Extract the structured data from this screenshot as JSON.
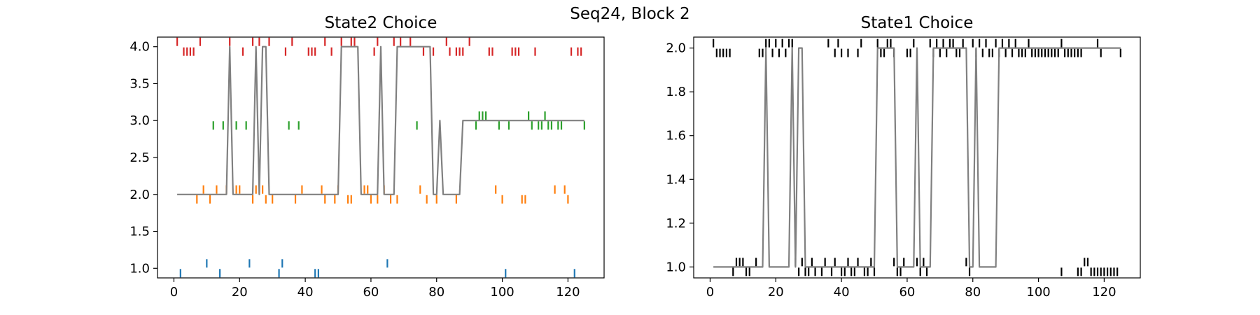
{
  "suptitle": "Seq24, Block 2",
  "chart_data": [
    {
      "type": "scatter",
      "title": "State2 Choice",
      "xlabel": "",
      "ylabel": "",
      "xlim": [
        -5,
        131
      ],
      "ylim": [
        0.87,
        4.13
      ],
      "xticks": [
        0,
        20,
        40,
        60,
        80,
        100,
        120
      ],
      "yticks": [
        1.0,
        1.5,
        2.0,
        2.5,
        3.0,
        3.5,
        4.0
      ],
      "ytick_labels": [
        "1.0",
        "1.5",
        "2.0",
        "2.5",
        "3.0",
        "3.5",
        "4.0"
      ],
      "grid": false,
      "legend": "none",
      "tick_series": [
        {
          "color": "#1f77b4",
          "level": 1,
          "x": [
            2,
            10,
            14,
            23,
            32,
            33,
            43,
            44,
            65,
            101,
            122
          ],
          "offset": [
            -1,
            1,
            -1,
            1,
            -1,
            1,
            -1,
            -1,
            1,
            -1,
            -1
          ]
        },
        {
          "color": "#ff7f0e",
          "level": 2,
          "x": [
            7,
            9,
            11,
            13,
            16,
            19,
            20,
            24,
            25,
            26,
            27,
            28,
            30,
            37,
            39,
            45,
            46,
            49,
            50,
            53,
            54,
            58,
            59,
            60,
            62,
            64,
            66,
            68,
            75,
            77,
            80,
            86,
            98,
            100,
            106,
            107,
            116,
            119,
            120
          ],
          "offset": [
            -1,
            1,
            -1,
            1,
            1,
            1,
            1,
            -1,
            1,
            1,
            1,
            -1,
            -1,
            -1,
            1,
            1,
            -1,
            -1,
            1,
            -1,
            -1,
            1,
            1,
            -1,
            -1,
            1,
            -1,
            -1,
            1,
            -1,
            -1,
            -1,
            1,
            -1,
            -1,
            -1,
            1,
            1,
            -1
          ]
        },
        {
          "color": "#2ca02c",
          "level": 3,
          "x": [
            12,
            15,
            19,
            22,
            35,
            38,
            74,
            92,
            93,
            94,
            95,
            99,
            102,
            108,
            109,
            111,
            112,
            113,
            114,
            115,
            117,
            118,
            125
          ],
          "offset": [
            -1,
            -1,
            -1,
            -1,
            -1,
            -1,
            -1,
            -1,
            1,
            1,
            1,
            -1,
            -1,
            1,
            -1,
            -1,
            -1,
            1,
            -1,
            -1,
            -1,
            -1,
            -1
          ]
        },
        {
          "color": "#d62728",
          "level": 4,
          "x": [
            1,
            3,
            4,
            5,
            6,
            8,
            17,
            21,
            24,
            26,
            29,
            34,
            36,
            41,
            42,
            43,
            46,
            48,
            51,
            54,
            55,
            61,
            62,
            67,
            69,
            72,
            76,
            79,
            83,
            84,
            86,
            87,
            88,
            90,
            96,
            97,
            103,
            104,
            105,
            110,
            121,
            123,
            124
          ],
          "offset": [
            1,
            -1,
            -1,
            -1,
            -1,
            1,
            1,
            -1,
            1,
            1,
            1,
            -1,
            1,
            -1,
            -1,
            -1,
            1,
            -1,
            1,
            1,
            1,
            -1,
            1,
            1,
            1,
            1,
            -1,
            -1,
            1,
            -1,
            -1,
            -1,
            -1,
            1,
            -1,
            -1,
            -1,
            -1,
            -1,
            -1,
            -1,
            -1,
            -1
          ]
        }
      ],
      "line": {
        "color": "#808080",
        "x": [
          1,
          16,
          17,
          18,
          24,
          25,
          26,
          27,
          28,
          29,
          50,
          51,
          55,
          56,
          57,
          62,
          63,
          64,
          67,
          68,
          77,
          78,
          79,
          80,
          81,
          82,
          87,
          88,
          125
        ],
        "y": [
          2,
          2,
          4,
          2,
          2,
          4,
          2,
          4,
          4,
          2,
          2,
          4,
          4,
          4,
          2,
          2,
          4,
          2,
          2,
          4,
          4,
          4,
          2,
          2,
          3,
          2,
          2,
          3,
          3
        ]
      }
    },
    {
      "type": "scatter",
      "title": "State1 Choice",
      "xlabel": "",
      "ylabel": "",
      "xlim": [
        -5,
        131
      ],
      "ylim": [
        0.95,
        2.05
      ],
      "xticks": [
        0,
        20,
        40,
        60,
        80,
        100,
        120
      ],
      "yticks": [
        1.0,
        1.2,
        1.4,
        1.6,
        1.8,
        2.0
      ],
      "ytick_labels": [
        "1.0",
        "1.2",
        "1.4",
        "1.6",
        "1.8",
        "2.0"
      ],
      "grid": false,
      "legend": "none",
      "tick_series": [
        {
          "color": "#000000",
          "level": 1,
          "x": [
            7,
            8,
            9,
            10,
            11,
            12,
            14,
            26,
            27,
            28,
            29,
            30,
            31,
            32,
            34,
            35,
            37,
            38,
            40,
            41,
            42,
            43,
            44,
            45,
            47,
            48,
            49,
            50,
            56,
            57,
            58,
            59,
            63,
            64,
            65,
            66,
            78,
            79,
            107,
            112,
            113,
            114,
            115,
            116,
            117,
            118,
            119,
            120,
            121,
            122,
            123,
            124
          ],
          "offset": [
            -1,
            1,
            1,
            1,
            -1,
            -1,
            1,
            1,
            -1,
            1,
            -1,
            -1,
            1,
            -1,
            -1,
            1,
            -1,
            1,
            -1,
            -1,
            1,
            -1,
            -1,
            1,
            -1,
            -1,
            1,
            -1,
            1,
            -1,
            -1,
            1,
            1,
            -1,
            1,
            -1,
            1,
            -1,
            -1,
            -1,
            -1,
            1,
            1,
            -1,
            -1,
            -1,
            -1,
            -1,
            -1,
            -1,
            -1,
            -1
          ]
        },
        {
          "color": "#000000",
          "level": 2,
          "x": [
            1,
            2,
            3,
            4,
            5,
            6,
            15,
            16,
            17,
            18,
            19,
            20,
            21,
            22,
            23,
            24,
            25,
            36,
            38,
            39,
            40,
            42,
            45,
            46,
            51,
            52,
            53,
            54,
            55,
            56,
            60,
            61,
            62,
            67,
            68,
            69,
            70,
            71,
            72,
            73,
            74,
            75,
            76,
            77,
            80,
            81,
            82,
            83,
            84,
            85,
            86,
            87,
            88,
            89,
            90,
            91,
            92,
            93,
            94,
            95,
            96,
            97,
            98,
            99,
            100,
            101,
            102,
            103,
            104,
            105,
            106,
            107,
            108,
            109,
            110,
            111,
            112,
            113,
            118,
            119,
            125
          ],
          "offset": [
            1,
            -1,
            -1,
            -1,
            -1,
            -1,
            -1,
            -1,
            1,
            1,
            -1,
            1,
            -1,
            1,
            -1,
            1,
            1,
            1,
            -1,
            1,
            -1,
            -1,
            -1,
            1,
            1,
            -1,
            -1,
            1,
            1,
            -1,
            -1,
            -1,
            1,
            1,
            -1,
            1,
            -1,
            1,
            -1,
            1,
            1,
            -1,
            -1,
            1,
            1,
            -1,
            1,
            -1,
            1,
            -1,
            -1,
            1,
            -1,
            1,
            -1,
            1,
            -1,
            1,
            -1,
            -1,
            -1,
            1,
            -1,
            -1,
            -1,
            -1,
            -1,
            -1,
            -1,
            -1,
            -1,
            1,
            -1,
            -1,
            -1,
            -1,
            -1,
            -1,
            1,
            -1,
            -1
          ]
        }
      ],
      "line": {
        "color": "#808080",
        "x": [
          1,
          16,
          17,
          18,
          24,
          25,
          26,
          27,
          28,
          29,
          50,
          51,
          55,
          56,
          57,
          62,
          63,
          64,
          67,
          68,
          77,
          78,
          79,
          80,
          81,
          82,
          87,
          88,
          125
        ],
        "y": [
          1,
          1,
          2,
          1,
          1,
          2,
          1,
          2,
          2,
          1,
          1,
          2,
          2,
          2,
          1,
          1,
          2,
          1,
          1,
          2,
          2,
          2,
          1,
          1,
          2,
          1,
          1,
          2,
          2
        ]
      }
    }
  ]
}
